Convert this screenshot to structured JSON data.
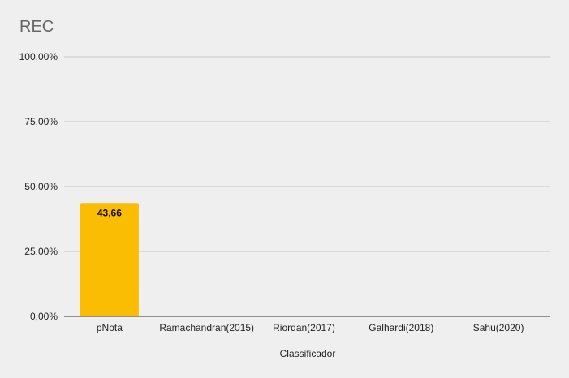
{
  "chart_data": {
    "type": "bar",
    "title": "REC",
    "xlabel": "Classificador",
    "ylabel": "",
    "categories": [
      "pNota",
      "Ramachandran(2015)",
      "Riordan(2017)",
      "Galhardi(2018)",
      "Sahu(2020)"
    ],
    "values": [
      43.66,
      null,
      null,
      null,
      null
    ],
    "data_labels": [
      "43,66",
      "",
      "",
      "",
      ""
    ],
    "ylim": [
      0,
      100
    ],
    "yticks": [
      0,
      25,
      50,
      75,
      100
    ],
    "ytick_labels": [
      "0,00%",
      "25,00%",
      "50,00%",
      "75,00%",
      "100,00%"
    ],
    "grid": true,
    "legend": "none",
    "bar_color": "#fbbc04",
    "grid_color": "#c4c4c4",
    "background_color": "#efefef"
  }
}
